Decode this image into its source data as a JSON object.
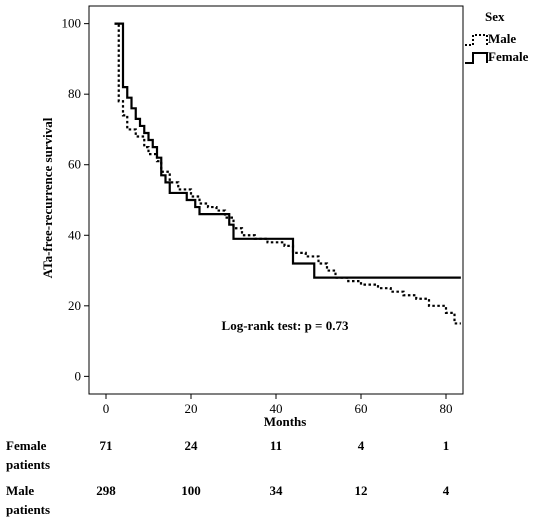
{
  "chart_data": {
    "type": "line",
    "subtype": "kaplan-meier step",
    "xlabel": "Months",
    "ylabel": "ATa-free-recurrence survival",
    "xlim": [
      -4,
      84
    ],
    "ylim": [
      -5,
      105
    ],
    "xticks": [
      0,
      20,
      40,
      60,
      80
    ],
    "yticks": [
      0,
      20,
      40,
      60,
      80,
      100
    ],
    "legend": {
      "title": "Sex",
      "position": "top-right outside"
    },
    "annotation": "Log-rank test: p = 0.73",
    "series": [
      {
        "name": "Male",
        "style": "dotted",
        "color": "#000000",
        "points": [
          [
            2,
            100
          ],
          [
            3,
            100
          ],
          [
            3,
            78
          ],
          [
            4,
            74
          ],
          [
            5,
            70
          ],
          [
            7,
            68
          ],
          [
            9,
            65
          ],
          [
            10,
            63
          ],
          [
            12,
            61
          ],
          [
            13,
            58
          ],
          [
            15,
            55
          ],
          [
            17,
            53
          ],
          [
            20,
            51
          ],
          [
            22,
            49
          ],
          [
            24,
            48
          ],
          [
            26,
            47
          ],
          [
            28,
            45
          ],
          [
            30,
            42
          ],
          [
            32,
            40
          ],
          [
            35,
            39
          ],
          [
            38,
            38
          ],
          [
            42,
            37
          ],
          [
            44,
            35
          ],
          [
            47,
            34
          ],
          [
            50,
            32
          ],
          [
            52,
            30
          ],
          [
            54,
            28
          ],
          [
            57,
            27
          ],
          [
            60,
            26
          ],
          [
            64,
            25
          ],
          [
            67,
            24
          ],
          [
            70,
            23
          ],
          [
            73,
            22
          ],
          [
            76,
            20
          ],
          [
            80,
            18
          ],
          [
            82,
            15
          ],
          [
            83.5,
            15
          ]
        ]
      },
      {
        "name": "Female",
        "style": "solid",
        "color": "#000000",
        "points": [
          [
            2,
            100
          ],
          [
            4,
            100
          ],
          [
            4,
            82
          ],
          [
            5,
            79
          ],
          [
            6,
            76
          ],
          [
            7,
            73
          ],
          [
            8,
            71
          ],
          [
            9,
            69
          ],
          [
            10,
            67
          ],
          [
            11,
            65
          ],
          [
            12,
            62
          ],
          [
            13,
            57
          ],
          [
            14,
            55
          ],
          [
            15,
            52
          ],
          [
            19,
            52
          ],
          [
            19,
            50
          ],
          [
            21,
            48
          ],
          [
            22,
            46
          ],
          [
            29,
            46
          ],
          [
            29,
            43
          ],
          [
            30,
            39
          ],
          [
            44,
            39
          ],
          [
            44,
            32
          ],
          [
            49,
            32
          ],
          [
            49,
            28
          ],
          [
            83.5,
            28
          ]
        ]
      }
    ]
  },
  "risk_table": {
    "rows": [
      {
        "label_line1": "Female",
        "label_line2": "patients",
        "values": [
          "71",
          "24",
          "11",
          "4",
          "1"
        ]
      },
      {
        "label_line1": "Male",
        "label_line2": "patients",
        "values": [
          "298",
          "100",
          "34",
          "12",
          "4"
        ]
      }
    ]
  }
}
